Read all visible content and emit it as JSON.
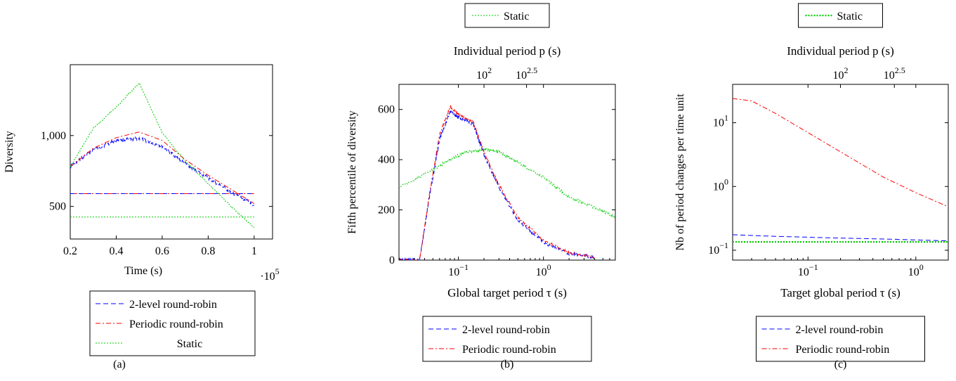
{
  "chart_data": [
    {
      "panel_label": "(a)",
      "type": "line",
      "xlabel": "Time (s)",
      "x_multiplier": "·10",
      "x_multiplier_exp": "5",
      "ylabel": "Diversity",
      "xlim": [
        0.2,
        1.08
      ],
      "ylim": [
        270,
        1500
      ],
      "xticks": [
        {
          "v": 0.2,
          "label": "0.2"
        },
        {
          "v": 0.4,
          "label": "0.4"
        },
        {
          "v": 0.6,
          "label": "0.6"
        },
        {
          "v": 0.8,
          "label": "0.8"
        },
        {
          "v": 1.0,
          "label": "1"
        }
      ],
      "yticks": [
        {
          "v": 500,
          "label": "500"
        },
        {
          "v": 1000,
          "label": "1,000"
        }
      ],
      "legend": [
        "2-level round-robin",
        "Periodic round-robin",
        "Static"
      ],
      "series": [
        {
          "name": "2-level round-robin",
          "color": "#0000ff",
          "dash": "7,4",
          "noise": 22,
          "x": [
            0.2,
            0.3,
            0.4,
            0.5,
            0.6,
            0.7,
            0.8,
            0.9,
            1.0
          ],
          "y": [
            780,
            900,
            965,
            980,
            925,
            800,
            700,
            600,
            510
          ]
        },
        {
          "name": "Periodic round-robin",
          "color": "#ff0000",
          "dash": "7,3,2,3",
          "noise": 0,
          "x": [
            0.2,
            0.3,
            0.4,
            0.5,
            0.6,
            0.7,
            0.8,
            0.9,
            1.0
          ],
          "y": [
            780,
            910,
            985,
            1025,
            965,
            830,
            720,
            620,
            520
          ]
        },
        {
          "name": "Periodic round-robin (constant)",
          "color": "#ff0000",
          "dash": "10,3,2,3",
          "noise": 0,
          "x": [
            0.2,
            1.0
          ],
          "y": [
            590,
            590
          ]
        },
        {
          "name": "2-level round-robin (constant)",
          "color": "#0000ff",
          "dash": "6,6",
          "noise": 0,
          "x": [
            0.2,
            1.0
          ],
          "y": [
            590,
            590
          ]
        },
        {
          "name": "Static",
          "color": "#00cc00",
          "dash": "2,2",
          "noise": 8,
          "x": [
            0.2,
            0.3,
            0.4,
            0.5,
            0.6,
            0.7,
            0.8,
            0.9,
            1.0
          ],
          "y": [
            780,
            1050,
            1200,
            1370,
            1020,
            820,
            660,
            500,
            350
          ]
        },
        {
          "name": "Static (constant)",
          "color": "#00cc00",
          "dash": "2,2",
          "noise": 0,
          "x": [
            0.2,
            1.0
          ],
          "y": [
            425,
            425
          ]
        }
      ]
    },
    {
      "panel_label": "(b)",
      "type": "line",
      "xscale": "log",
      "xlabel": "Global target period τ (s)",
      "x2label": "Individual period p (s)",
      "ylabel": "Fifth percentile of diversity",
      "xlim": [
        0.02,
        7
      ],
      "ylim": [
        0,
        700
      ],
      "x2lim": [
        10,
        3500
      ],
      "xticks": [
        {
          "v": 0.1,
          "label": "10",
          "sup": "−1"
        },
        {
          "v": 1,
          "label": "10",
          "sup": "0"
        }
      ],
      "x2ticks": [
        {
          "v": 100,
          "label": "10",
          "sup": "2"
        },
        {
          "v": 316.2,
          "label": "10",
          "sup": "2.5"
        }
      ],
      "yticks": [
        {
          "v": 0,
          "label": "0"
        },
        {
          "v": 200,
          "label": "200"
        },
        {
          "v": 400,
          "label": "400"
        },
        {
          "v": 600,
          "label": "600"
        }
      ],
      "top_legend": [
        "Static"
      ],
      "legend": [
        "2-level round-robin",
        "Periodic round-robin"
      ],
      "series": [
        {
          "name": "2-level round-robin",
          "color": "#0000ff",
          "dash": "7,4",
          "noise": 12,
          "x": [
            0.02,
            0.035,
            0.045,
            0.06,
            0.08,
            0.1,
            0.15,
            0.2,
            0.3,
            0.5,
            1,
            2,
            4
          ],
          "y": [
            0,
            0,
            240,
            480,
            590,
            570,
            540,
            420,
            290,
            160,
            70,
            25,
            10
          ]
        },
        {
          "name": "Periodic round-robin",
          "color": "#ff0000",
          "dash": "7,3,2,3",
          "noise": 8,
          "x": [
            0.02,
            0.035,
            0.045,
            0.06,
            0.08,
            0.1,
            0.15,
            0.2,
            0.3,
            0.5,
            1,
            2,
            4
          ],
          "y": [
            0,
            0,
            250,
            500,
            610,
            580,
            550,
            430,
            300,
            170,
            80,
            30,
            12
          ]
        },
        {
          "name": "Static",
          "color": "#00cc00",
          "dash": "2,2",
          "noise": 10,
          "x": [
            0.02,
            0.05,
            0.08,
            0.12,
            0.2,
            0.3,
            0.5,
            1,
            2,
            4,
            7
          ],
          "y": [
            290,
            360,
            400,
            430,
            440,
            430,
            390,
            330,
            250,
            210,
            170
          ]
        }
      ]
    },
    {
      "panel_label": "(c)",
      "type": "line",
      "xscale": "log",
      "yscale": "log",
      "xlabel": "Target global period τ (s)",
      "x2label": "Individual period p (s)",
      "ylabel": "Nb of period changes per time unit",
      "xlim": [
        0.02,
        2
      ],
      "ylim": [
        0.07,
        40
      ],
      "x2lim": [
        10,
        1000
      ],
      "xticks": [
        {
          "v": 0.1,
          "label": "10",
          "sup": "−1"
        },
        {
          "v": 1,
          "label": "10",
          "sup": "0"
        }
      ],
      "x2ticks": [
        {
          "v": 100,
          "label": "10",
          "sup": "2"
        },
        {
          "v": 316.2,
          "label": "10",
          "sup": "2.5"
        }
      ],
      "yticks": [
        {
          "v": 0.1,
          "label": "10",
          "sup": "−1"
        },
        {
          "v": 1,
          "label": "10",
          "sup": "0"
        },
        {
          "v": 10,
          "label": "10",
          "sup": "1"
        }
      ],
      "top_legend": [
        "Static"
      ],
      "legend": [
        "2-level round-robin",
        "Periodic round-robin"
      ],
      "series": [
        {
          "name": "2-level round-robin",
          "color": "#0000ff",
          "dash": "7,4",
          "noise": 0,
          "x": [
            0.02,
            0.05,
            0.1,
            0.2,
            0.5,
            1,
            2
          ],
          "y": [
            0.175,
            0.165,
            0.16,
            0.155,
            0.15,
            0.145,
            0.14
          ]
        },
        {
          "name": "Periodic round-robin",
          "color": "#ff0000",
          "dash": "7,3,2,3",
          "noise": 0,
          "x": [
            0.02,
            0.03,
            0.05,
            0.1,
            0.2,
            0.5,
            1,
            2
          ],
          "y": [
            24,
            22,
            14,
            7,
            3.5,
            1.4,
            0.8,
            0.48
          ]
        },
        {
          "name": "Static",
          "color": "#00cc00",
          "dash": "2,2",
          "noise": 0,
          "width": 2.2,
          "x": [
            0.02,
            0.1,
            0.5,
            2
          ],
          "y": [
            0.135,
            0.135,
            0.135,
            0.135
          ]
        }
      ]
    }
  ]
}
